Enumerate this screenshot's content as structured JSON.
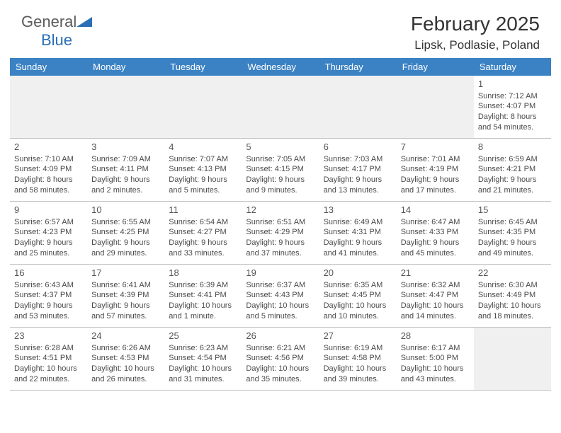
{
  "brand": {
    "line1": "General",
    "line2": "Blue"
  },
  "title": "February 2025",
  "location": "Lipsk, Podlasie, Poland",
  "day_names": [
    "Sunday",
    "Monday",
    "Tuesday",
    "Wednesday",
    "Thursday",
    "Friday",
    "Saturday"
  ],
  "header_bg": "#3b82c4",
  "header_fg": "#ffffff",
  "weeks": [
    [
      null,
      null,
      null,
      null,
      null,
      null,
      {
        "d": "1",
        "sr": "7:12 AM",
        "ss": "4:07 PM",
        "dl": "8 hours and 54 minutes."
      }
    ],
    [
      {
        "d": "2",
        "sr": "7:10 AM",
        "ss": "4:09 PM",
        "dl": "8 hours and 58 minutes."
      },
      {
        "d": "3",
        "sr": "7:09 AM",
        "ss": "4:11 PM",
        "dl": "9 hours and 2 minutes."
      },
      {
        "d": "4",
        "sr": "7:07 AM",
        "ss": "4:13 PM",
        "dl": "9 hours and 5 minutes."
      },
      {
        "d": "5",
        "sr": "7:05 AM",
        "ss": "4:15 PM",
        "dl": "9 hours and 9 minutes."
      },
      {
        "d": "6",
        "sr": "7:03 AM",
        "ss": "4:17 PM",
        "dl": "9 hours and 13 minutes."
      },
      {
        "d": "7",
        "sr": "7:01 AM",
        "ss": "4:19 PM",
        "dl": "9 hours and 17 minutes."
      },
      {
        "d": "8",
        "sr": "6:59 AM",
        "ss": "4:21 PM",
        "dl": "9 hours and 21 minutes."
      }
    ],
    [
      {
        "d": "9",
        "sr": "6:57 AM",
        "ss": "4:23 PM",
        "dl": "9 hours and 25 minutes."
      },
      {
        "d": "10",
        "sr": "6:55 AM",
        "ss": "4:25 PM",
        "dl": "9 hours and 29 minutes."
      },
      {
        "d": "11",
        "sr": "6:54 AM",
        "ss": "4:27 PM",
        "dl": "9 hours and 33 minutes."
      },
      {
        "d": "12",
        "sr": "6:51 AM",
        "ss": "4:29 PM",
        "dl": "9 hours and 37 minutes."
      },
      {
        "d": "13",
        "sr": "6:49 AM",
        "ss": "4:31 PM",
        "dl": "9 hours and 41 minutes."
      },
      {
        "d": "14",
        "sr": "6:47 AM",
        "ss": "4:33 PM",
        "dl": "9 hours and 45 minutes."
      },
      {
        "d": "15",
        "sr": "6:45 AM",
        "ss": "4:35 PM",
        "dl": "9 hours and 49 minutes."
      }
    ],
    [
      {
        "d": "16",
        "sr": "6:43 AM",
        "ss": "4:37 PM",
        "dl": "9 hours and 53 minutes."
      },
      {
        "d": "17",
        "sr": "6:41 AM",
        "ss": "4:39 PM",
        "dl": "9 hours and 57 minutes."
      },
      {
        "d": "18",
        "sr": "6:39 AM",
        "ss": "4:41 PM",
        "dl": "10 hours and 1 minute."
      },
      {
        "d": "19",
        "sr": "6:37 AM",
        "ss": "4:43 PM",
        "dl": "10 hours and 5 minutes."
      },
      {
        "d": "20",
        "sr": "6:35 AM",
        "ss": "4:45 PM",
        "dl": "10 hours and 10 minutes."
      },
      {
        "d": "21",
        "sr": "6:32 AM",
        "ss": "4:47 PM",
        "dl": "10 hours and 14 minutes."
      },
      {
        "d": "22",
        "sr": "6:30 AM",
        "ss": "4:49 PM",
        "dl": "10 hours and 18 minutes."
      }
    ],
    [
      {
        "d": "23",
        "sr": "6:28 AM",
        "ss": "4:51 PM",
        "dl": "10 hours and 22 minutes."
      },
      {
        "d": "24",
        "sr": "6:26 AM",
        "ss": "4:53 PM",
        "dl": "10 hours and 26 minutes."
      },
      {
        "d": "25",
        "sr": "6:23 AM",
        "ss": "4:54 PM",
        "dl": "10 hours and 31 minutes."
      },
      {
        "d": "26",
        "sr": "6:21 AM",
        "ss": "4:56 PM",
        "dl": "10 hours and 35 minutes."
      },
      {
        "d": "27",
        "sr": "6:19 AM",
        "ss": "4:58 PM",
        "dl": "10 hours and 39 minutes."
      },
      {
        "d": "28",
        "sr": "6:17 AM",
        "ss": "5:00 PM",
        "dl": "10 hours and 43 minutes."
      },
      null
    ]
  ],
  "labels": {
    "sunrise": "Sunrise:",
    "sunset": "Sunset:",
    "daylight": "Daylight:"
  }
}
